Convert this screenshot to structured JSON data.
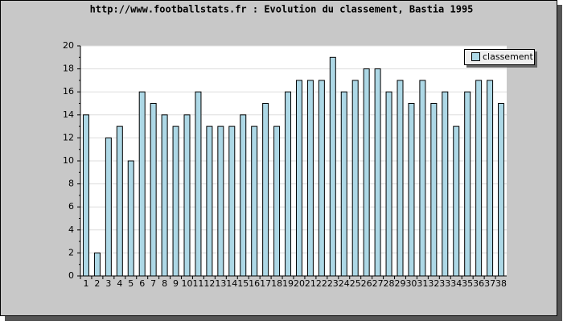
{
  "chart_data": {
    "type": "bar",
    "title": "http://www.footballstats.fr : Evolution du classement, Bastia 1995",
    "categories": [
      "1",
      "2",
      "3",
      "4",
      "5",
      "6",
      "7",
      "8",
      "9",
      "10",
      "11",
      "12",
      "13",
      "14",
      "15",
      "16",
      "17",
      "18",
      "19",
      "20",
      "21",
      "22",
      "23",
      "24",
      "25",
      "26",
      "27",
      "28",
      "29",
      "30",
      "31",
      "32",
      "33",
      "34",
      "35",
      "36",
      "37",
      "38"
    ],
    "series": [
      {
        "name": "classement",
        "color": "#add8e6",
        "values": [
          14,
          2,
          12,
          13,
          10,
          16,
          15,
          14,
          13,
          14,
          16,
          13,
          13,
          13,
          14,
          13,
          15,
          13,
          16,
          17,
          17,
          17,
          19,
          16,
          17,
          18,
          18,
          16,
          17,
          15,
          17,
          15,
          16,
          13,
          16,
          17,
          17,
          15
        ]
      }
    ],
    "ylim": [
      0,
      20
    ],
    "yticks": [
      0,
      2,
      4,
      6,
      8,
      10,
      12,
      14,
      16,
      18,
      20
    ],
    "grid": true,
    "legend": "top-right"
  }
}
